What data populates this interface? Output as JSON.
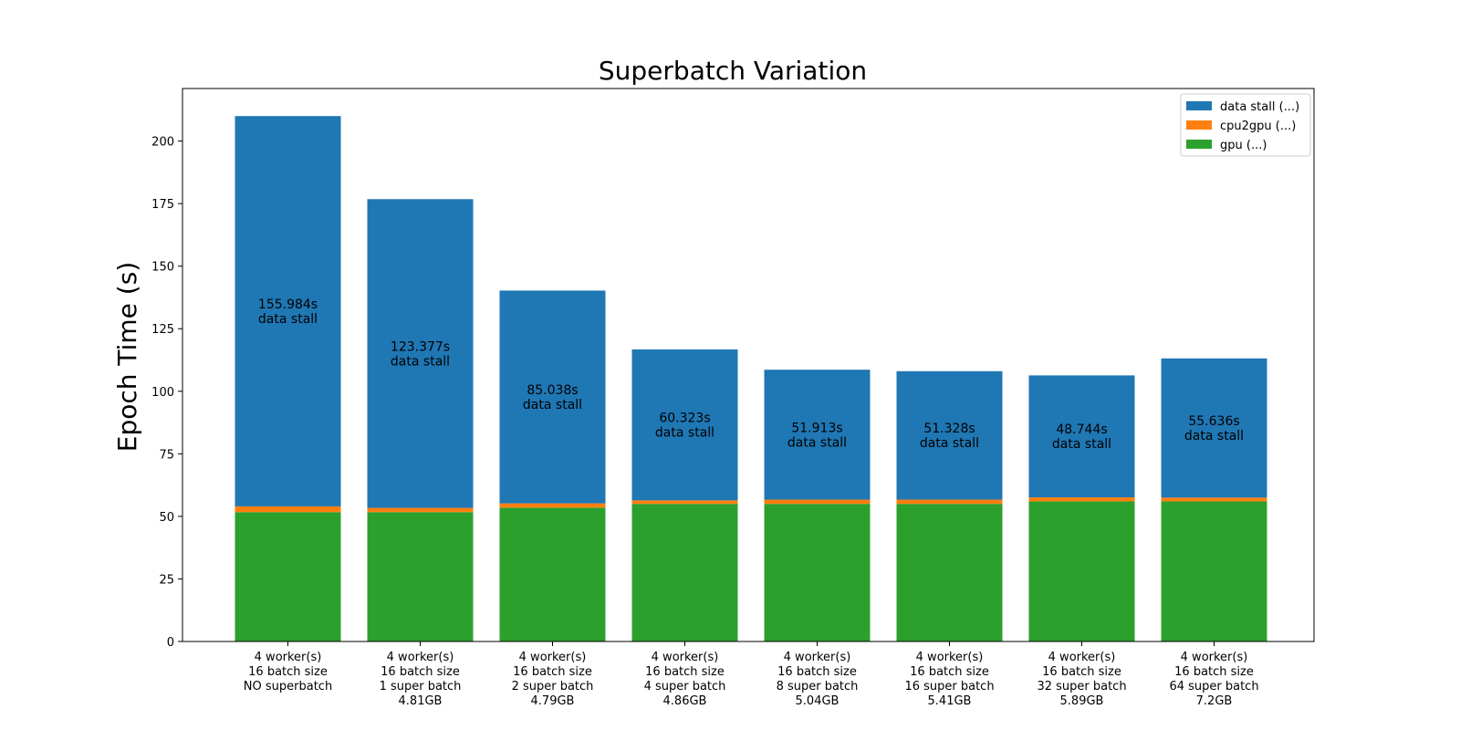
{
  "chart_data": {
    "type": "bar",
    "stacked": true,
    "title": "Superbatch Variation",
    "ylabel": "Epoch Time (s)",
    "xlabel": "",
    "ylim": [
      0,
      221
    ],
    "yticks": [
      0,
      25,
      50,
      75,
      100,
      125,
      150,
      175,
      200
    ],
    "grid": false,
    "legend_position": "top-right",
    "categories": [
      [
        "4 worker(s)",
        "16 batch size",
        "NO superbatch"
      ],
      [
        "4 worker(s)",
        "16 batch size",
        "1 super batch",
        "4.81GB"
      ],
      [
        "4 worker(s)",
        "16 batch size",
        "2 super batch",
        "4.79GB"
      ],
      [
        "4 worker(s)",
        "16 batch size",
        "4 super batch",
        "4.86GB"
      ],
      [
        "4 worker(s)",
        "16 batch size",
        "8 super batch",
        "5.04GB"
      ],
      [
        "4 worker(s)",
        "16 batch size",
        "16 super batch",
        "5.41GB"
      ],
      [
        "4 worker(s)",
        "16 batch size",
        "32 super batch",
        "5.89GB"
      ],
      [
        "4 worker(s)",
        "16 batch size",
        "64 super batch",
        "7.2GB"
      ]
    ],
    "series": [
      {
        "name": "gpu (...)",
        "color": "#2ca02c",
        "values": [
          51.7,
          51.7,
          53.5,
          55.0,
          55.0,
          55.0,
          56.0,
          56.0
        ]
      },
      {
        "name": "cpu2gpu (...)",
        "color": "#ff7f0e",
        "values": [
          2.3,
          1.7,
          1.7,
          1.4,
          1.7,
          1.7,
          1.6,
          1.5
        ]
      },
      {
        "name": "data stall (...)",
        "color": "#1f77b4",
        "values": [
          155.984,
          123.377,
          85.038,
          60.323,
          51.913,
          51.328,
          48.744,
          55.636
        ]
      }
    ],
    "legend_order": [
      "data stall (...)",
      "cpu2gpu (...)",
      "gpu (...)"
    ],
    "bar_labels": [
      [
        "155.984s",
        "data stall"
      ],
      [
        "123.377s",
        "data stall"
      ],
      [
        "85.038s",
        "data stall"
      ],
      [
        "60.323s",
        "data stall"
      ],
      [
        "51.913s",
        "data stall"
      ],
      [
        "51.328s",
        "data stall"
      ],
      [
        "48.744s",
        "data stall"
      ],
      [
        "55.636s",
        "data stall"
      ]
    ]
  }
}
